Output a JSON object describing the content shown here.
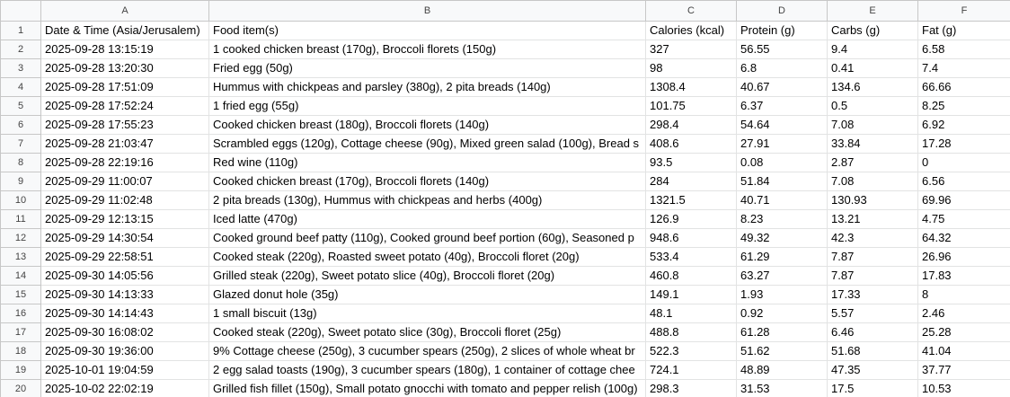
{
  "columns": [
    "A",
    "B",
    "C",
    "D",
    "E",
    "F"
  ],
  "header_row": {
    "num": "1",
    "cells": [
      "Date & Time (Asia/Jerusalem)",
      "Food item(s)",
      "Calories (kcal)",
      "Protein (g)",
      "Carbs (g)",
      "Fat (g)"
    ]
  },
  "rows": [
    {
      "num": "2",
      "cells": [
        "2025-09-28 13:15:19",
        "1 cooked chicken breast (170g), Broccoli florets (150g)",
        "327",
        "56.55",
        "9.4",
        "6.58"
      ]
    },
    {
      "num": "3",
      "cells": [
        "2025-09-28 13:20:30",
        "Fried egg (50g)",
        "98",
        "6.8",
        "0.41",
        "7.4"
      ]
    },
    {
      "num": "4",
      "cells": [
        "2025-09-28 17:51:09",
        "Hummus with chickpeas and parsley (380g), 2 pita breads (140g)",
        "1308.4",
        "40.67",
        "134.6",
        "66.66"
      ]
    },
    {
      "num": "5",
      "cells": [
        "2025-09-28 17:52:24",
        "1 fried egg (55g)",
        "101.75",
        "6.37",
        "0.5",
        "8.25"
      ]
    },
    {
      "num": "6",
      "cells": [
        "2025-09-28 17:55:23",
        "Cooked chicken breast (180g), Broccoli florets (140g)",
        "298.4",
        "54.64",
        "7.08",
        "6.92"
      ]
    },
    {
      "num": "7",
      "cells": [
        "2025-09-28 21:03:47",
        "Scrambled eggs (120g), Cottage cheese (90g), Mixed green salad (100g), Bread s",
        "408.6",
        "27.91",
        "33.84",
        "17.28"
      ]
    },
    {
      "num": "8",
      "cells": [
        "2025-09-28 22:19:16",
        "Red wine (110g)",
        "93.5",
        "0.08",
        "2.87",
        "0"
      ]
    },
    {
      "num": "9",
      "cells": [
        "2025-09-29 11:00:07",
        "Cooked chicken breast (170g), Broccoli florets (140g)",
        "284",
        "51.84",
        "7.08",
        "6.56"
      ]
    },
    {
      "num": "10",
      "cells": [
        "2025-09-29 11:02:48",
        "2 pita breads (130g), Hummus with chickpeas and herbs (400g)",
        "1321.5",
        "40.71",
        "130.93",
        "69.96"
      ]
    },
    {
      "num": "11",
      "cells": [
        "2025-09-29 12:13:15",
        "Iced latte (470g)",
        "126.9",
        "8.23",
        "13.21",
        "4.75"
      ]
    },
    {
      "num": "12",
      "cells": [
        "2025-09-29 14:30:54",
        "Cooked ground beef patty (110g), Cooked ground beef portion (60g), Seasoned p",
        "948.6",
        "49.32",
        "42.3",
        "64.32"
      ]
    },
    {
      "num": "13",
      "cells": [
        "2025-09-29 22:58:51",
        "Cooked steak (220g), Roasted sweet potato (40g), Broccoli floret (20g)",
        "533.4",
        "61.29",
        "7.87",
        "26.96"
      ]
    },
    {
      "num": "14",
      "cells": [
        "2025-09-30 14:05:56",
        "Grilled steak (220g), Sweet potato slice (40g), Broccoli floret (20g)",
        "460.8",
        "63.27",
        "7.87",
        "17.83"
      ]
    },
    {
      "num": "15",
      "cells": [
        "2025-09-30 14:13:33",
        "Glazed donut hole (35g)",
        "149.1",
        "1.93",
        "17.33",
        "8"
      ]
    },
    {
      "num": "16",
      "cells": [
        "2025-09-30 14:14:43",
        "1 small biscuit (13g)",
        "48.1",
        "0.92",
        "5.57",
        "2.46"
      ]
    },
    {
      "num": "17",
      "cells": [
        "2025-09-30 16:08:02",
        "Cooked steak (220g), Sweet potato slice (30g), Broccoli floret (25g)",
        "488.8",
        "61.28",
        "6.46",
        "25.28"
      ]
    },
    {
      "num": "18",
      "cells": [
        "2025-09-30 19:36:00",
        "9% Cottage cheese (250g), 3 cucumber spears (250g), 2 slices of whole wheat br",
        "522.3",
        "51.62",
        "51.68",
        "41.04"
      ]
    },
    {
      "num": "19",
      "cells": [
        "2025-10-01 19:04:59",
        "2 egg salad toasts (190g), 3 cucumber spears (180g), 1 container of cottage chee",
        "724.1",
        "48.89",
        "47.35",
        "37.77"
      ]
    },
    {
      "num": "20",
      "cells": [
        "2025-10-02 22:02:19",
        "Grilled fish fillet (150g), Small potato gnocchi with tomato and pepper relish (100g)",
        "298.3",
        "31.53",
        "17.5",
        "10.53"
      ]
    }
  ]
}
